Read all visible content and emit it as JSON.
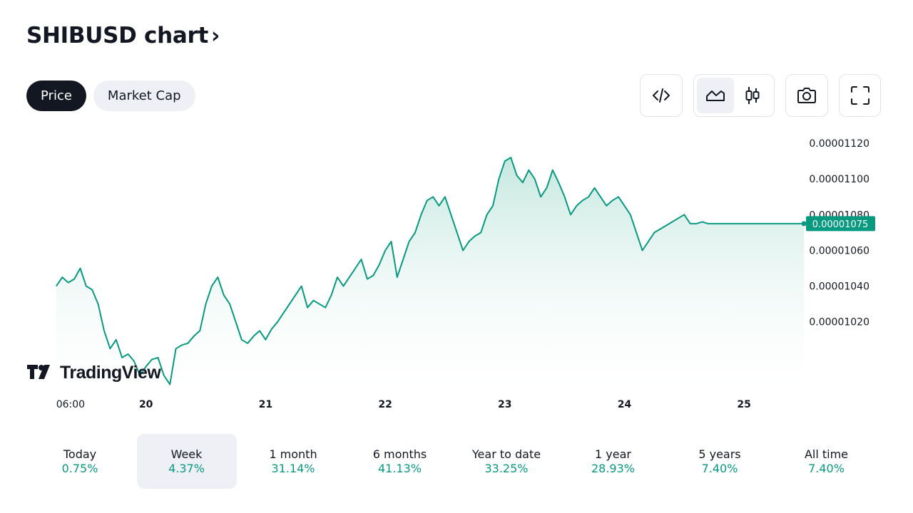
{
  "header": {
    "title": "SHIBUSD chart",
    "chevron": "›"
  },
  "tabs": [
    {
      "label": "Price",
      "active": true
    },
    {
      "label": "Market Cap",
      "active": false
    }
  ],
  "toolbar": {
    "embed_icon": "code-icon",
    "area_chart_icon": "area-chart-icon",
    "candles_icon": "candlestick-icon",
    "snapshot_icon": "camera-icon",
    "fullscreen_icon": "fullscreen-icon",
    "selected_chart_type": "area"
  },
  "watermark": {
    "logo_icon": "tradingview-logo-icon",
    "text": "TradingView"
  },
  "colors": {
    "line": "#089981",
    "fill_top": "#bfe5dc",
    "fill_bottom": "#ffffff",
    "price_badge": "#089981",
    "axis_text": "#131722"
  },
  "chart_data": {
    "type": "area",
    "symbol": "SHIBUSD",
    "y_axis": {
      "ticks": [
        "0.00001120",
        "0.00001100",
        "0.00001080",
        "0.00001060",
        "0.00001040",
        "0.00001020"
      ],
      "min": 9.8e-06,
      "max": 1.13e-05
    },
    "x_axis": {
      "labels": [
        "06:00",
        "20",
        "21",
        "22",
        "23",
        "24",
        "25"
      ],
      "label_positions": [
        0.25,
        1.0,
        2.0,
        3.0,
        4.0,
        5.0,
        6.0
      ]
    },
    "last_price": "0.00001075",
    "last_price_value": 1.075e-05,
    "series": [
      {
        "name": "SHIBUSD",
        "x": [
          0.25,
          0.3,
          0.35,
          0.4,
          0.45,
          0.5,
          0.55,
          0.6,
          0.65,
          0.7,
          0.75,
          0.8,
          0.85,
          0.9,
          0.95,
          1.0,
          1.05,
          1.1,
          1.15,
          1.2,
          1.25,
          1.3,
          1.35,
          1.4,
          1.45,
          1.5,
          1.55,
          1.6,
          1.65,
          1.7,
          1.75,
          1.8,
          1.85,
          1.9,
          1.95,
          2.0,
          2.05,
          2.1,
          2.15,
          2.2,
          2.25,
          2.3,
          2.35,
          2.4,
          2.45,
          2.5,
          2.55,
          2.6,
          2.65,
          2.7,
          2.75,
          2.8,
          2.85,
          2.9,
          2.95,
          3.0,
          3.05,
          3.1,
          3.15,
          3.2,
          3.25,
          3.3,
          3.35,
          3.4,
          3.45,
          3.5,
          3.55,
          3.6,
          3.65,
          3.7,
          3.75,
          3.8,
          3.85,
          3.9,
          3.95,
          4.0,
          4.05,
          4.1,
          4.15,
          4.2,
          4.25,
          4.3,
          4.35,
          4.4,
          4.45,
          4.5,
          4.55,
          4.6,
          4.65,
          4.7,
          4.75,
          4.8,
          4.85,
          4.9,
          4.95,
          5.0,
          5.05,
          5.1,
          5.15,
          5.2,
          5.25,
          5.3,
          5.35,
          5.4,
          5.45,
          5.5,
          5.55,
          5.6,
          5.65,
          5.7,
          5.75,
          5.8,
          5.85,
          5.9,
          5.95,
          6.0,
          6.05,
          6.1,
          6.15,
          6.2,
          6.25,
          6.3,
          6.35,
          6.4,
          6.45,
          6.5
        ],
        "values": [
          1.04e-05,
          1.045e-05,
          1.042e-05,
          1.044e-05,
          1.05e-05,
          1.04e-05,
          1.038e-05,
          1.03e-05,
          1.015e-05,
          1.005e-05,
          1.01e-05,
          1e-05,
          1.002e-05,
          9.98e-06,
          9.9e-06,
          9.95e-06,
          9.99e-06,
          1e-05,
          9.9e-06,
          9.85e-06,
          1.005e-05,
          1.007e-05,
          1.008e-05,
          1.012e-05,
          1.015e-05,
          1.03e-05,
          1.04e-05,
          1.045e-05,
          1.035e-05,
          1.03e-05,
          1.02e-05,
          1.01e-05,
          1.008e-05,
          1.012e-05,
          1.015e-05,
          1.01e-05,
          1.016e-05,
          1.02e-05,
          1.025e-05,
          1.03e-05,
          1.035e-05,
          1.04e-05,
          1.028e-05,
          1.032e-05,
          1.03e-05,
          1.028e-05,
          1.035e-05,
          1.045e-05,
          1.04e-05,
          1.045e-05,
          1.05e-05,
          1.055e-05,
          1.044e-05,
          1.046e-05,
          1.052e-05,
          1.06e-05,
          1.065e-05,
          1.045e-05,
          1.055e-05,
          1.065e-05,
          1.07e-05,
          1.08e-05,
          1.088e-05,
          1.09e-05,
          1.085e-05,
          1.09e-05,
          1.08e-05,
          1.07e-05,
          1.06e-05,
          1.065e-05,
          1.068e-05,
          1.07e-05,
          1.08e-05,
          1.085e-05,
          1.1e-05,
          1.11e-05,
          1.112e-05,
          1.102e-05,
          1.098e-05,
          1.105e-05,
          1.1e-05,
          1.09e-05,
          1.095e-05,
          1.105e-05,
          1.098e-05,
          1.09e-05,
          1.08e-05,
          1.085e-05,
          1.088e-05,
          1.09e-05,
          1.095e-05,
          1.09e-05,
          1.085e-05,
          1.088e-05,
          1.09e-05,
          1.085e-05,
          1.08e-05,
          1.07e-05,
          1.06e-05,
          1.065e-05,
          1.07e-05,
          1.072e-05,
          1.074e-05,
          1.076e-05,
          1.078e-05,
          1.08e-05,
          1.075e-05,
          1.075e-05,
          1.076e-05,
          1.075e-05,
          1.075e-05,
          1.075e-05,
          1.075e-05,
          1.075e-05,
          1.075e-05,
          1.075e-05,
          1.075e-05,
          1.075e-05,
          1.075e-05,
          1.075e-05,
          1.075e-05,
          1.075e-05,
          1.075e-05,
          1.075e-05,
          1.075e-05,
          1.075e-05
        ]
      }
    ]
  },
  "periods": [
    {
      "label": "Today",
      "value": "0.75%",
      "selected": false
    },
    {
      "label": "Week",
      "value": "4.37%",
      "selected": true
    },
    {
      "label": "1 month",
      "value": "31.14%",
      "selected": false
    },
    {
      "label": "6 months",
      "value": "41.13%",
      "selected": false
    },
    {
      "label": "Year to date",
      "value": "33.25%",
      "selected": false
    },
    {
      "label": "1 year",
      "value": "28.93%",
      "selected": false
    },
    {
      "label": "5 years",
      "value": "7.40%",
      "selected": false
    },
    {
      "label": "All time",
      "value": "7.40%",
      "selected": false
    }
  ]
}
